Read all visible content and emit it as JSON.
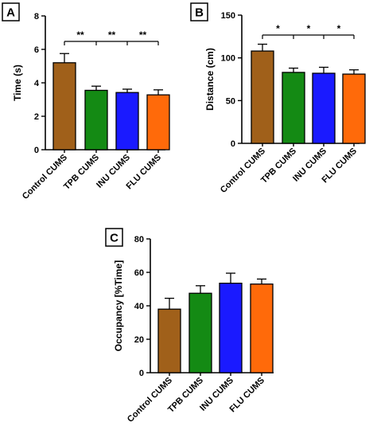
{
  "chart_data": [
    {
      "panel": "A",
      "type": "bar",
      "categories": [
        "Control CUMS",
        "TPB CUMS",
        "INU CUMS",
        "FLU CUMS"
      ],
      "values": [
        5.2,
        3.55,
        3.42,
        3.28
      ],
      "errors": [
        0.55,
        0.25,
        0.2,
        0.3
      ],
      "colors": [
        "#a0601a",
        "#148a14",
        "#1a1aff",
        "#ff6a0a"
      ],
      "ylabel": "Time (s)",
      "ylim": [
        0,
        8
      ],
      "yticks": [
        "0",
        "2",
        "4",
        "6",
        "8"
      ],
      "significance": [
        {
          "from": 0,
          "to": 1,
          "label": "**"
        },
        {
          "from": 1,
          "to": 2,
          "label": "**"
        },
        {
          "from": 2,
          "to": 3,
          "label": "**"
        }
      ]
    },
    {
      "panel": "B",
      "type": "bar",
      "categories": [
        "Control CUMS",
        "TPB CUMS",
        "INU CUMS",
        "FLU CUMS"
      ],
      "values": [
        108,
        83,
        82,
        81
      ],
      "errors": [
        8,
        5,
        7,
        5
      ],
      "colors": [
        "#a0601a",
        "#148a14",
        "#1a1aff",
        "#ff6a0a"
      ],
      "ylabel": "Distance (cm)",
      "ylim": [
        0,
        150
      ],
      "yticks": [
        "0",
        "50",
        "100",
        "150"
      ],
      "significance": [
        {
          "from": 0,
          "to": 1,
          "label": "*"
        },
        {
          "from": 1,
          "to": 2,
          "label": "*"
        },
        {
          "from": 2,
          "to": 3,
          "label": "*"
        }
      ]
    },
    {
      "panel": "C",
      "type": "bar",
      "categories": [
        "Control CUMS",
        "TPB CUMS",
        "INU CUMS",
        "FLU CUMS"
      ],
      "values": [
        38,
        47.5,
        53.5,
        53
      ],
      "errors": [
        6.5,
        4.5,
        6,
        3
      ],
      "colors": [
        "#a0601a",
        "#148a14",
        "#1a1aff",
        "#ff6a0a"
      ],
      "ylabel": "Occupancy [%Time]",
      "ylim": [
        0,
        80
      ],
      "yticks": [
        "0",
        "20",
        "40",
        "60",
        "80"
      ],
      "significance": []
    }
  ]
}
